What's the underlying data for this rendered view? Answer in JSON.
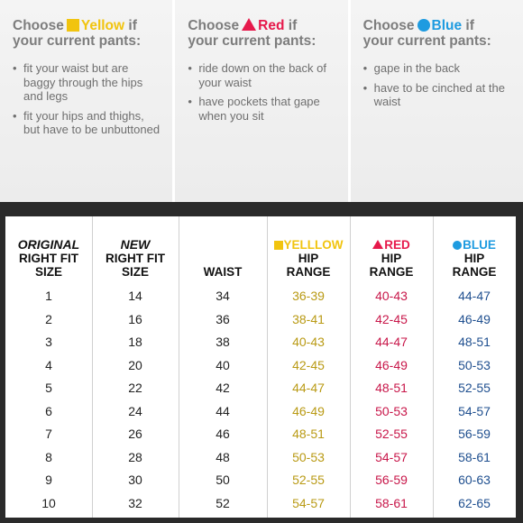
{
  "choices": [
    {
      "prefix": "Choose",
      "color_name": "Yellow",
      "suffix": "if",
      "line2": "your current pants:",
      "swatch": "yellow-square",
      "color": "#f1c40f",
      "bullets": [
        "fit your waist but are baggy through the hips and legs",
        "fit your hips and thighs, but have to be unbuttoned"
      ]
    },
    {
      "prefix": "Choose",
      "color_name": "Red",
      "suffix": "if",
      "line2": "your current pants:",
      "swatch": "red-triangle",
      "color": "#e6194b",
      "bullets": [
        "ride down on the back of your waist",
        "have pockets that gape when you sit"
      ]
    },
    {
      "prefix": "Choose",
      "color_name": "Blue",
      "suffix": "if",
      "line2": "your current pants:",
      "swatch": "blue-circle",
      "color": "#1e9be0",
      "bullets": [
        "gape in the back",
        "have to be cinched at the waist"
      ]
    }
  ],
  "table": {
    "headers": {
      "original": [
        "ORIGINAL",
        "RIGHT FIT",
        "SIZE"
      ],
      "new": [
        "NEW",
        "RIGHT FIT",
        "SIZE"
      ],
      "waist": "WAIST",
      "yellow": [
        "YELLLOW",
        "HIP",
        "RANGE"
      ],
      "red": [
        "RED",
        "HIP",
        "RANGE"
      ],
      "blue": [
        "BLUE",
        "HIP",
        "RANGE"
      ]
    },
    "rows": [
      {
        "original": "1",
        "new": "14",
        "waist": "34",
        "yellow": "36-39",
        "red": "40-43",
        "blue": "44-47"
      },
      {
        "original": "2",
        "new": "16",
        "waist": "36",
        "yellow": "38-41",
        "red": "42-45",
        "blue": "46-49"
      },
      {
        "original": "3",
        "new": "18",
        "waist": "38",
        "yellow": "40-43",
        "red": "44-47",
        "blue": "48-51"
      },
      {
        "original": "4",
        "new": "20",
        "waist": "40",
        "yellow": "42-45",
        "red": "46-49",
        "blue": "50-53"
      },
      {
        "original": "5",
        "new": "22",
        "waist": "42",
        "yellow": "44-47",
        "red": "48-51",
        "blue": "52-55"
      },
      {
        "original": "6",
        "new": "24",
        "waist": "44",
        "yellow": "46-49",
        "red": "50-53",
        "blue": "54-57"
      },
      {
        "original": "7",
        "new": "26",
        "waist": "46",
        "yellow": "48-51",
        "red": "52-55",
        "blue": "56-59"
      },
      {
        "original": "8",
        "new": "28",
        "waist": "48",
        "yellow": "50-53",
        "red": "54-57",
        "blue": "58-61"
      },
      {
        "original": "9",
        "new": "30",
        "waist": "50",
        "yellow": "52-55",
        "red": "56-59",
        "blue": "60-63"
      },
      {
        "original": "10",
        "new": "32",
        "waist": "52",
        "yellow": "54-57",
        "red": "58-61",
        "blue": "62-65"
      }
    ]
  }
}
